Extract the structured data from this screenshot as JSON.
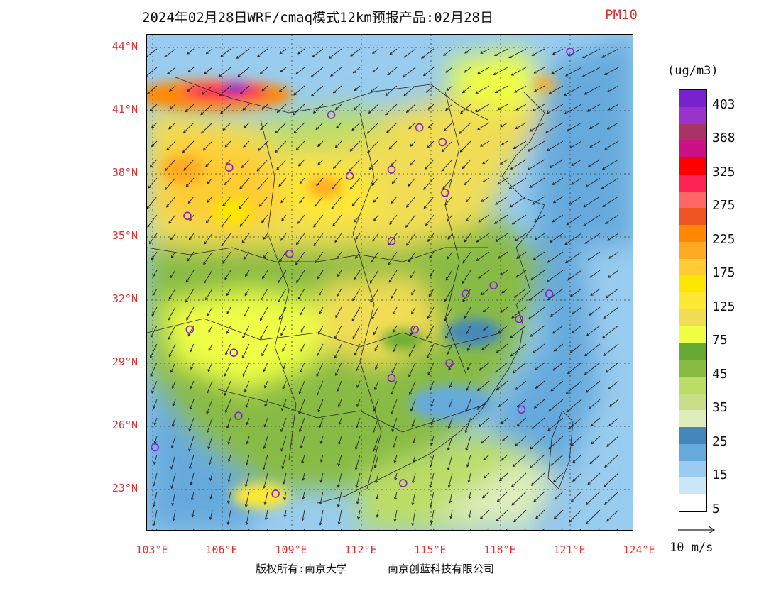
{
  "title": {
    "main": "2024年02月28日WRF/cmaq模式12km预报产品:02月28日",
    "variable": "PM10"
  },
  "map": {
    "lat_labels": [
      "44°N",
      "41°N",
      "38°N",
      "35°N",
      "32°N",
      "29°N",
      "26°N",
      "23°N"
    ],
    "lon_labels": [
      "103°E",
      "106°E",
      "109°E",
      "112°E",
      "115°E",
      "118°E",
      "121°E",
      "124°E"
    ],
    "lon_range": [
      103,
      124
    ],
    "lat_range": [
      21,
      44.5
    ],
    "station_marker_color": "#8822cc",
    "stations": [
      {
        "lon": 121.0,
        "lat": 43.8
      },
      {
        "lon": 110.7,
        "lat": 40.8
      },
      {
        "lon": 114.5,
        "lat": 40.2
      },
      {
        "lon": 115.5,
        "lat": 39.5
      },
      {
        "lon": 106.3,
        "lat": 38.3
      },
      {
        "lon": 111.5,
        "lat": 37.9
      },
      {
        "lon": 113.3,
        "lat": 38.2
      },
      {
        "lon": 115.6,
        "lat": 37.1
      },
      {
        "lon": 104.5,
        "lat": 36.0
      },
      {
        "lon": 113.3,
        "lat": 34.8
      },
      {
        "lon": 108.9,
        "lat": 34.2
      },
      {
        "lon": 116.5,
        "lat": 32.3
      },
      {
        "lon": 117.7,
        "lat": 32.7
      },
      {
        "lon": 120.1,
        "lat": 32.3
      },
      {
        "lon": 118.8,
        "lat": 31.1
      },
      {
        "lon": 114.3,
        "lat": 30.6
      },
      {
        "lon": 104.6,
        "lat": 30.6
      },
      {
        "lon": 106.5,
        "lat": 29.5
      },
      {
        "lon": 115.8,
        "lat": 29.0
      },
      {
        "lon": 113.3,
        "lat": 28.3
      },
      {
        "lon": 106.7,
        "lat": 26.5
      },
      {
        "lon": 118.9,
        "lat": 26.8
      },
      {
        "lon": 103.1,
        "lat": 25.0
      },
      {
        "lon": 108.3,
        "lat": 22.8
      },
      {
        "lon": 113.8,
        "lat": 23.3
      }
    ]
  },
  "colorbar": {
    "unit": "(ug/m3)",
    "tick_labels": [
      "403",
      "368",
      "325",
      "275",
      "225",
      "175",
      "125",
      "75",
      "45",
      "35",
      "25",
      "15",
      "5"
    ],
    "colors": [
      "#7722cc",
      "#9933cc",
      "#aa3366",
      "#cc1188",
      "#ff0000",
      "#ff2255",
      "#ff6666",
      "#ee5522",
      "#ff8800",
      "#ffaa22",
      "#ffcc33",
      "#ffe600",
      "#ffe833",
      "#f0dd55",
      "#eeff44",
      "#66aa33",
      "#88bb44",
      "#bbdd66",
      "#ccdd88",
      "#ddeebb",
      "#4488bb",
      "#66aadd",
      "#99ccee",
      "#cce8f8",
      "#ffffff"
    ]
  },
  "wind": {
    "reference_label": "10 m/s",
    "arrow_color": "#222222"
  },
  "copyright": {
    "left": "版权所有:南京大学",
    "right": "南京创蓝科技有限公司"
  }
}
